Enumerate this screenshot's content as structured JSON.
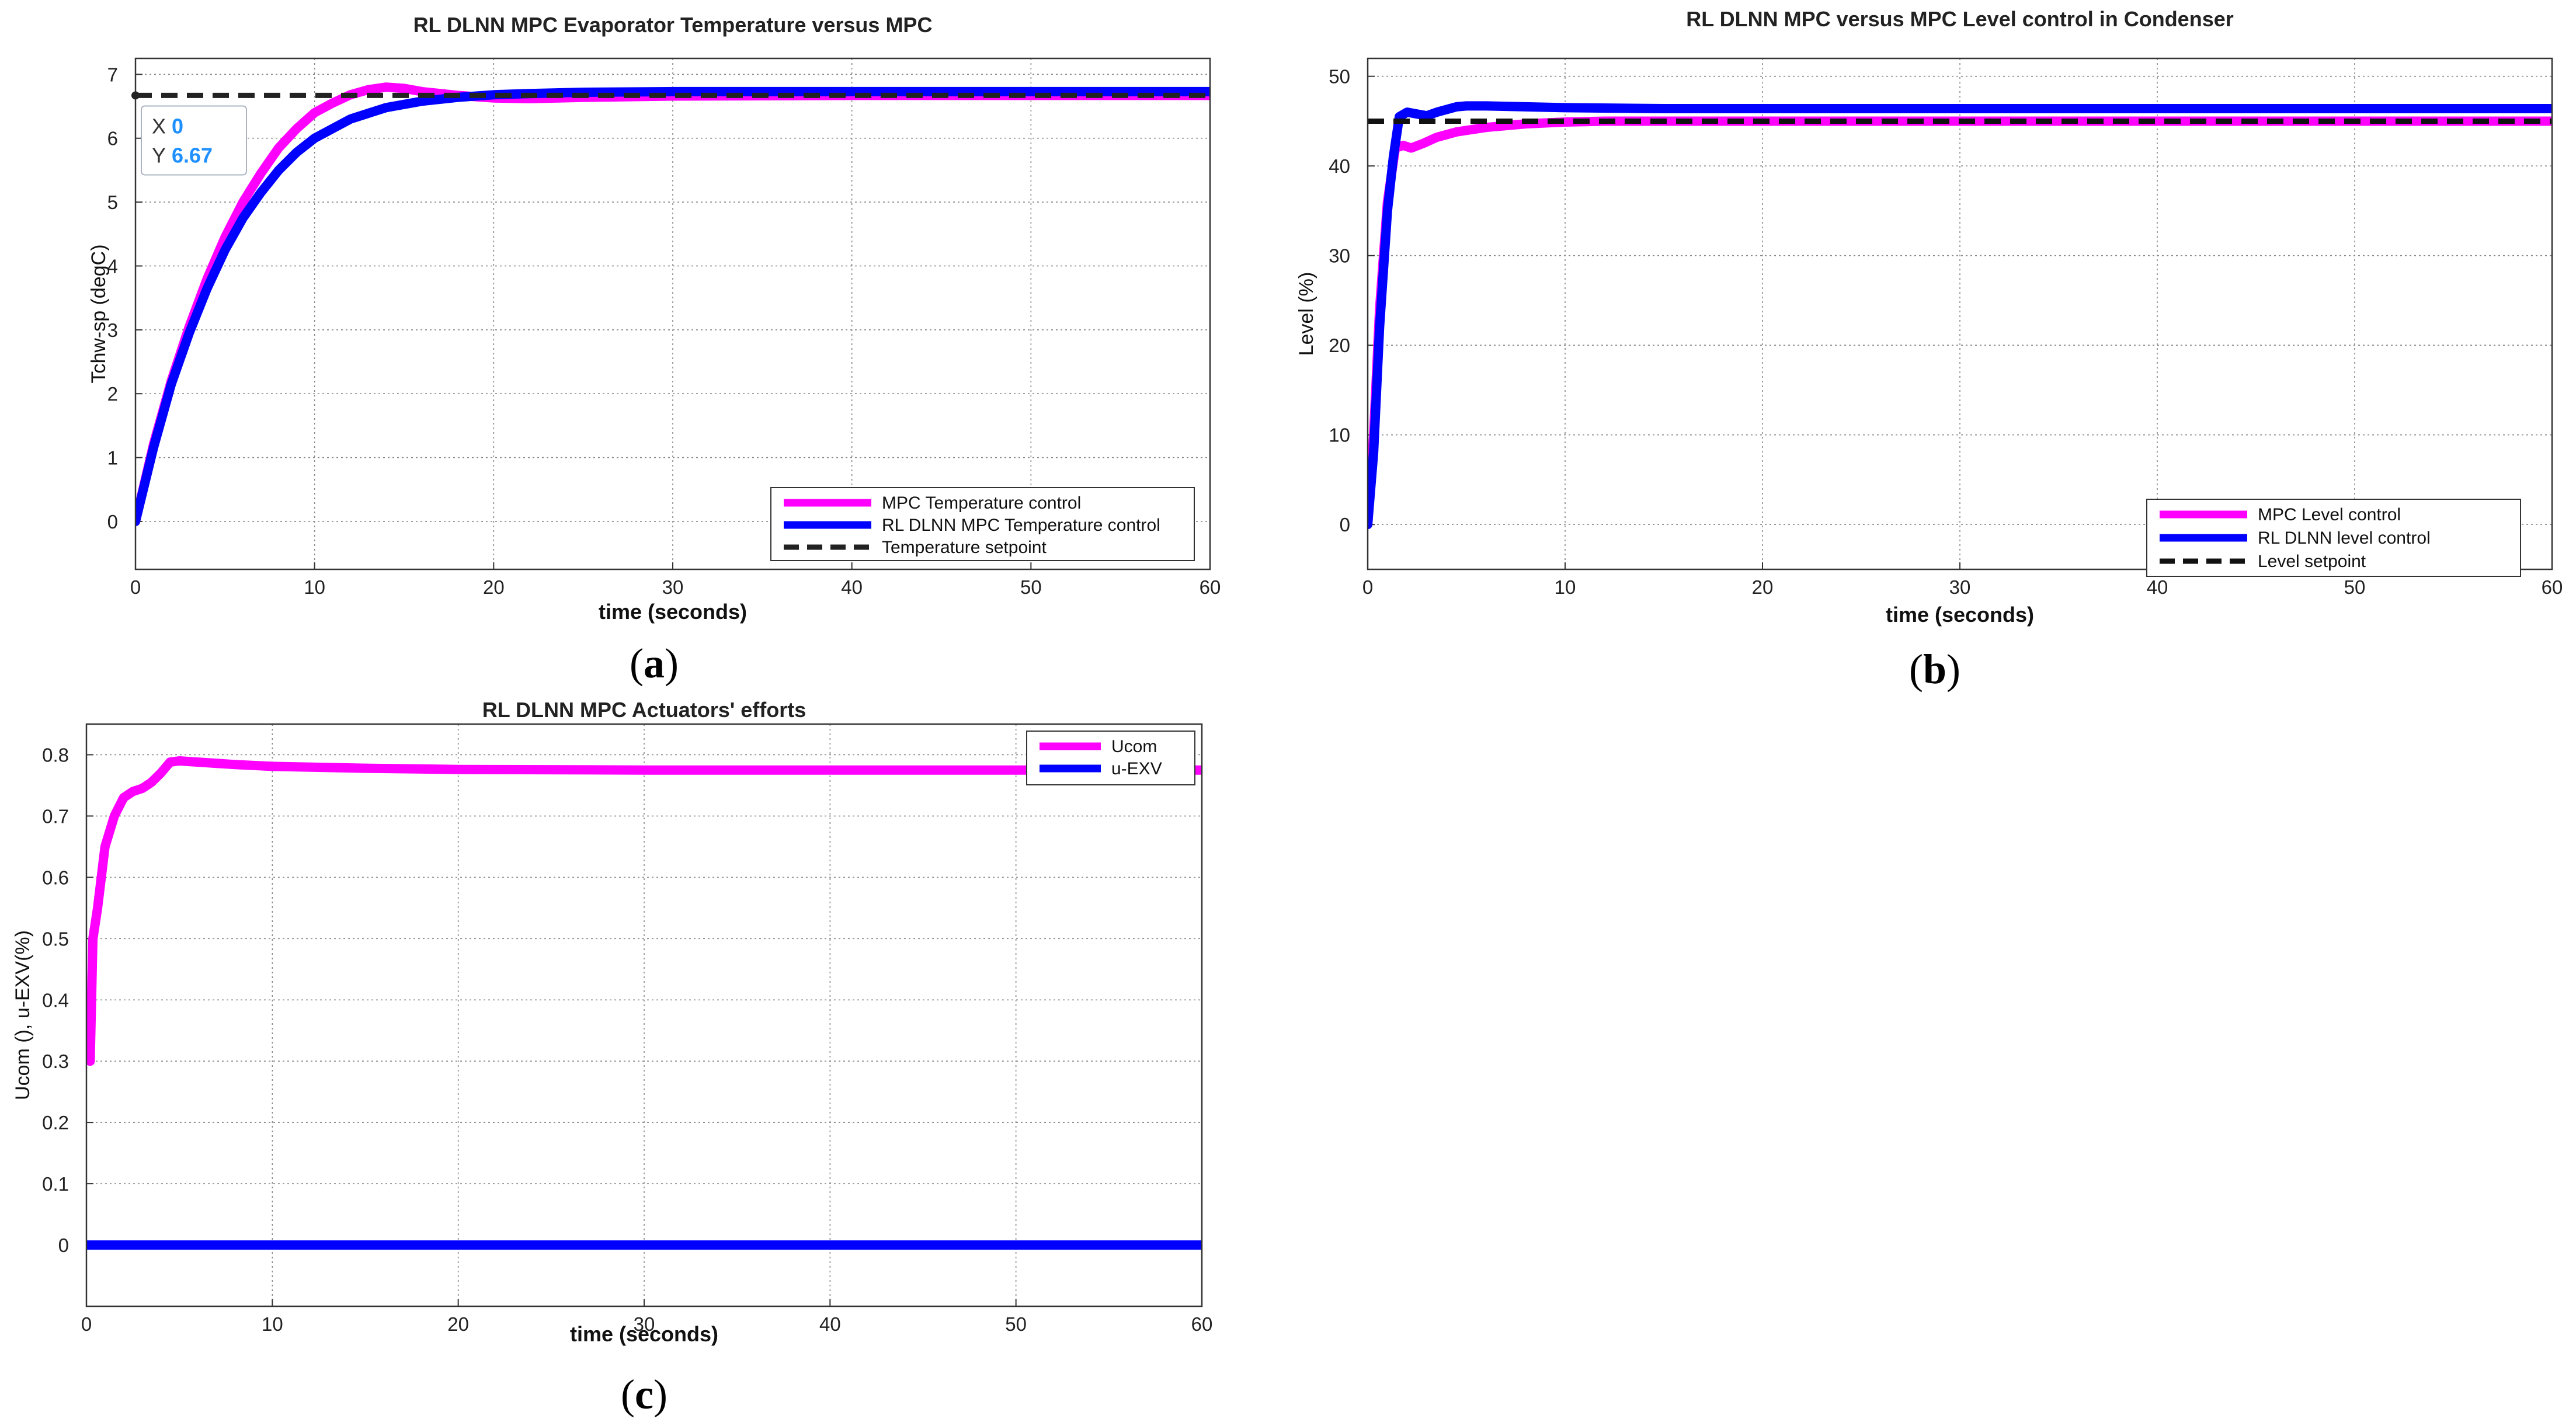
{
  "chart_data": [
    {
      "id": "a",
      "type": "line",
      "panel_label": "a",
      "title": "RL DLNN  MPC Evaporator Temperature versus  MPC",
      "xlabel": "time (seconds)",
      "ylabel": "Tchw-sp (degC)",
      "xlim": [
        0,
        60
      ],
      "ylim": [
        -0.75,
        7.25
      ],
      "xticks": [
        0,
        10,
        20,
        30,
        40,
        50,
        60
      ],
      "yticks": [
        0,
        1,
        2,
        3,
        4,
        5,
        6,
        7
      ],
      "grid": true,
      "legend_position": "bottom-right",
      "series": [
        {
          "name": "MPC Temperature control",
          "color": "#ff00ff",
          "style": "solid",
          "x": [
            0,
            1,
            2,
            3,
            4,
            5,
            6,
            7,
            8,
            9,
            10,
            11,
            12,
            13,
            14,
            15,
            16,
            18,
            20,
            22,
            25,
            30,
            40,
            50,
            60
          ],
          "y": [
            0,
            1.2,
            2.2,
            3.05,
            3.8,
            4.45,
            5.0,
            5.45,
            5.85,
            6.15,
            6.4,
            6.55,
            6.68,
            6.76,
            6.8,
            6.78,
            6.73,
            6.67,
            6.63,
            6.62,
            6.64,
            6.66,
            6.67,
            6.67,
            6.67
          ]
        },
        {
          "name": "RL DLNN MPC Temperature control",
          "color": "#0000ff",
          "style": "solid",
          "x": [
            0,
            1,
            2,
            3,
            4,
            5,
            6,
            7,
            8,
            9,
            10,
            12,
            14,
            16,
            18,
            20,
            22,
            25,
            30,
            40,
            50,
            60
          ],
          "y": [
            0,
            1.15,
            2.15,
            2.95,
            3.65,
            4.25,
            4.75,
            5.15,
            5.5,
            5.78,
            6.0,
            6.3,
            6.48,
            6.58,
            6.64,
            6.68,
            6.7,
            6.72,
            6.73,
            6.73,
            6.73,
            6.73
          ]
        },
        {
          "name": "Temperature setpoint",
          "color": "#222222",
          "style": "dashed",
          "x": [
            0,
            60
          ],
          "y": [
            6.67,
            6.67
          ]
        }
      ],
      "datatip": {
        "x_label": "X",
        "x_value": "0",
        "y_label": "Y",
        "y_value": "6.67",
        "at_x": 0,
        "at_y": 6.67
      }
    },
    {
      "id": "b",
      "type": "line",
      "panel_label": "b",
      "title": "RL DLNN MPC versus MPC Level control in Condenser",
      "xlabel": "time (seconds)",
      "ylabel": "Level (%)",
      "xlim": [
        0,
        60
      ],
      "ylim": [
        -5,
        52
      ],
      "xticks": [
        0,
        10,
        20,
        30,
        40,
        50,
        60
      ],
      "yticks": [
        0,
        10,
        20,
        30,
        40,
        50
      ],
      "grid": true,
      "legend_position": "bottom-right",
      "series": [
        {
          "name": "MPC Level control",
          "color": "#ff00ff",
          "style": "solid",
          "x": [
            0,
            0.3,
            0.6,
            1.0,
            1.4,
            1.8,
            2.2,
            2.8,
            3.5,
            4.5,
            6,
            8,
            10,
            12,
            15,
            20,
            30,
            40,
            50,
            60
          ],
          "y": [
            0,
            10,
            24,
            36,
            42,
            42.3,
            42.0,
            42.5,
            43.2,
            43.8,
            44.3,
            44.7,
            44.9,
            45.0,
            45.0,
            45.0,
            45.0,
            45.0,
            45.0,
            45.0
          ]
        },
        {
          "name": "RL DLNN level control",
          "color": "#0000ff",
          "style": "solid",
          "x": [
            0,
            0.3,
            0.6,
            1.0,
            1.3,
            1.6,
            2.0,
            2.5,
            3.0,
            3.5,
            4.0,
            4.5,
            5.0,
            6,
            8,
            10,
            15,
            20,
            30,
            40,
            50,
            60
          ],
          "y": [
            0,
            8,
            22,
            35,
            41,
            45.5,
            46.0,
            45.8,
            45.6,
            46.0,
            46.3,
            46.6,
            46.7,
            46.7,
            46.6,
            46.5,
            46.4,
            46.4,
            46.4,
            46.4,
            46.4,
            46.4
          ]
        },
        {
          "name": "Level setpoint",
          "color": "#111111",
          "style": "dashed",
          "x": [
            0,
            60
          ],
          "y": [
            45,
            45
          ]
        }
      ]
    },
    {
      "id": "c",
      "type": "line",
      "panel_label": "c",
      "title": "RL DLNN MPC Actuators' efforts",
      "xlabel": "time (seconds)",
      "ylabel": "Ucom (), u-EXV(%)",
      "xlim": [
        0,
        60
      ],
      "ylim": [
        -0.1,
        0.85
      ],
      "xticks": [
        0,
        10,
        20,
        30,
        40,
        50,
        60
      ],
      "yticks": [
        0,
        0.1,
        0.2,
        0.3,
        0.4,
        0.5,
        0.6,
        0.7,
        0.8
      ],
      "grid": true,
      "legend_position": "top-right",
      "series": [
        {
          "name": "Ucom",
          "color": "#ff00ff",
          "style": "solid",
          "x": [
            0.2,
            0.35,
            0.6,
            1.0,
            1.5,
            2.0,
            2.5,
            3.0,
            3.5,
            4.0,
            4.5,
            5.0,
            6,
            8,
            10,
            15,
            20,
            30,
            40,
            50,
            60
          ],
          "y": [
            0.3,
            0.5,
            0.55,
            0.65,
            0.7,
            0.73,
            0.74,
            0.745,
            0.755,
            0.77,
            0.788,
            0.79,
            0.788,
            0.784,
            0.781,
            0.778,
            0.776,
            0.775,
            0.775,
            0.775,
            0.775
          ]
        },
        {
          "name": "u-EXV",
          "color": "#0000ff",
          "style": "solid",
          "x": [
            0,
            60
          ],
          "y": [
            0,
            0
          ]
        }
      ]
    }
  ]
}
